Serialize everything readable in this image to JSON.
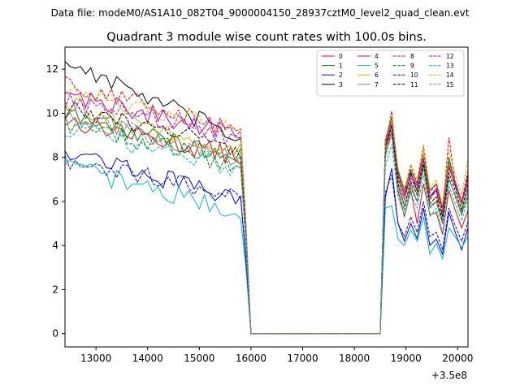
{
  "header": {
    "suptitle": "Data file: modeM0/AS1A10_082T04_9000004150_28937cztM0_level2_quad_clean.evt",
    "title": "Quadrant 3 module wise count rates with 100.0s bins."
  },
  "chart_data": {
    "type": "line",
    "xlim": [
      12400,
      20200
    ],
    "ylim": [
      -0.6,
      13.0
    ],
    "x_ticks": [
      13000,
      14000,
      15000,
      16000,
      17000,
      18000,
      19000,
      20000
    ],
    "x_tick_labels": [
      "13000",
      "14000",
      "15000",
      "16000",
      "17000",
      "18000",
      "19000",
      "20000"
    ],
    "y_ticks": [
      0,
      2,
      4,
      6,
      8,
      10,
      12
    ],
    "y_tick_labels": [
      "0",
      "2",
      "4",
      "6",
      "8",
      "10",
      "12"
    ],
    "x_offset_label": "+3.5e8",
    "legend_position": "top-right",
    "legend_columns": 4,
    "gap": {
      "start": 16000,
      "end": 18500,
      "value": 0
    },
    "series": [
      {
        "name": "0",
        "color": "#ff0000",
        "dash": "solid",
        "pre_start": 9.7,
        "pre_end": 8.0,
        "post_values": [
          8.2,
          9.5,
          6.5,
          5.3,
          6.5,
          5.0,
          6.8,
          5.4,
          5.5,
          4.5,
          6.5,
          5.6,
          4.8,
          5.6
        ]
      },
      {
        "name": "1",
        "color": "#008000",
        "dash": "solid",
        "pre_start": 9.9,
        "pre_end": 8.0,
        "post_values": [
          8.3,
          9.8,
          7.4,
          6.5,
          7.4,
          6.8,
          8.2,
          6.5,
          6.8,
          5.7,
          8.0,
          6.8,
          5.8,
          7.0
        ]
      },
      {
        "name": "2",
        "color": "#0000ff",
        "dash": "solid",
        "pre_start": 8.4,
        "pre_end": 6.0,
        "post_values": [
          6.2,
          7.5,
          5.0,
          4.2,
          5.0,
          4.3,
          5.7,
          4.0,
          4.3,
          3.6,
          5.5,
          4.6,
          3.8,
          4.8
        ]
      },
      {
        "name": "3",
        "color": "#000000",
        "dash": "solid",
        "pre_start": 12.4,
        "pre_end": 8.8,
        "post_values": [
          8.8,
          9.8,
          7.0,
          6.1,
          7.3,
          6.5,
          8.0,
          6.2,
          6.5,
          5.3,
          7.6,
          6.7,
          5.8,
          7.2
        ]
      },
      {
        "name": "4",
        "color": "#bf00bf",
        "dash": "solid",
        "pre_start": 10.9,
        "pre_end": 9.0,
        "post_values": [
          8.6,
          9.7,
          7.3,
          6.3,
          7.2,
          6.7,
          8.2,
          6.2,
          6.6,
          5.7,
          7.8,
          6.9,
          6.0,
          7.1
        ]
      },
      {
        "name": "5",
        "color": "#00bfbf",
        "dash": "solid",
        "pre_start": 7.6,
        "pre_end": 5.5,
        "post_values": [
          5.7,
          5.8,
          4.3,
          4.0,
          4.7,
          4.2,
          5.3,
          3.6,
          4.1,
          3.4,
          4.8,
          4.4,
          3.9,
          4.4
        ]
      },
      {
        "name": "6",
        "color": "#bfbf00",
        "dash": "solid",
        "pre_start": 10.4,
        "pre_end": 8.2,
        "post_values": [
          8.4,
          9.7,
          7.0,
          6.1,
          7.1,
          6.4,
          8.2,
          6.1,
          6.2,
          5.5,
          7.7,
          6.8,
          5.8,
          7.0
        ]
      },
      {
        "name": "7",
        "color": "#808080",
        "dash": "solid",
        "pre_start": 10.1,
        "pre_end": 7.8,
        "post_values": [
          8.3,
          9.2,
          6.8,
          5.8,
          6.8,
          6.0,
          7.7,
          5.8,
          6.0,
          5.0,
          7.0,
          6.3,
          5.4,
          6.6
        ]
      },
      {
        "name": "8",
        "color": "#ff0000",
        "dash": "dashed",
        "pre_start": 11.4,
        "pre_end": 9.2,
        "post_values": [
          8.6,
          10.1,
          7.2,
          6.3,
          7.6,
          6.8,
          8.5,
          6.4,
          6.8,
          5.6,
          8.9,
          6.8,
          6.0,
          7.4
        ]
      },
      {
        "name": "9",
        "color": "#008000",
        "dash": "dashed",
        "pre_start": 9.6,
        "pre_end": 7.6,
        "post_values": [
          8.0,
          9.2,
          6.4,
          5.6,
          6.6,
          6.0,
          7.6,
          5.7,
          6.0,
          5.0,
          7.1,
          6.2,
          5.4,
          6.3
        ]
      },
      {
        "name": "10",
        "color": "#0000ff",
        "dash": "dashed",
        "pre_start": 7.7,
        "pre_end": 6.4,
        "post_values": [
          6.4,
          7.2,
          5.0,
          4.4,
          5.3,
          4.6,
          6.0,
          4.4,
          4.6,
          3.8,
          5.7,
          4.9,
          4.2,
          5.1
        ]
      },
      {
        "name": "11",
        "color": "#000000",
        "dash": "dashed",
        "pre_start": 10.2,
        "pre_end": 8.4,
        "post_values": [
          8.5,
          9.4,
          6.8,
          5.8,
          6.9,
          6.3,
          7.8,
          5.9,
          6.2,
          5.1,
          7.3,
          6.5,
          5.6,
          6.8
        ]
      },
      {
        "name": "12",
        "color": "#bf00bf",
        "dash": "dashed",
        "pre_start": 10.6,
        "pre_end": 8.9,
        "post_values": [
          8.5,
          9.6,
          7.1,
          6.1,
          7.1,
          6.5,
          8.0,
          6.1,
          6.5,
          5.5,
          7.5,
          6.8,
          5.9,
          7.0
        ]
      },
      {
        "name": "13",
        "color": "#00bfbf",
        "dash": "dashed",
        "pre_start": 9.3,
        "pre_end": 7.5,
        "post_values": [
          7.6,
          8.6,
          6.2,
          5.4,
          6.4,
          5.7,
          7.2,
          5.3,
          5.7,
          4.6,
          6.7,
          5.9,
          5.1,
          6.2
        ]
      },
      {
        "name": "14",
        "color": "#bfbf00",
        "dash": "dashed",
        "pre_start": 11.2,
        "pre_end": 9.2,
        "post_values": [
          8.8,
          9.9,
          7.5,
          6.6,
          7.7,
          7.0,
          8.6,
          6.6,
          7.0,
          5.9,
          8.3,
          7.2,
          6.3,
          7.9
        ]
      },
      {
        "name": "15",
        "color": "#808080",
        "dash": "dashed",
        "pre_start": 10.0,
        "pre_end": 7.9,
        "post_values": [
          8.1,
          9.0,
          6.6,
          5.8,
          6.7,
          6.0,
          7.5,
          5.7,
          6.0,
          5.1,
          7.0,
          6.3,
          5.5,
          6.5
        ]
      }
    ]
  }
}
